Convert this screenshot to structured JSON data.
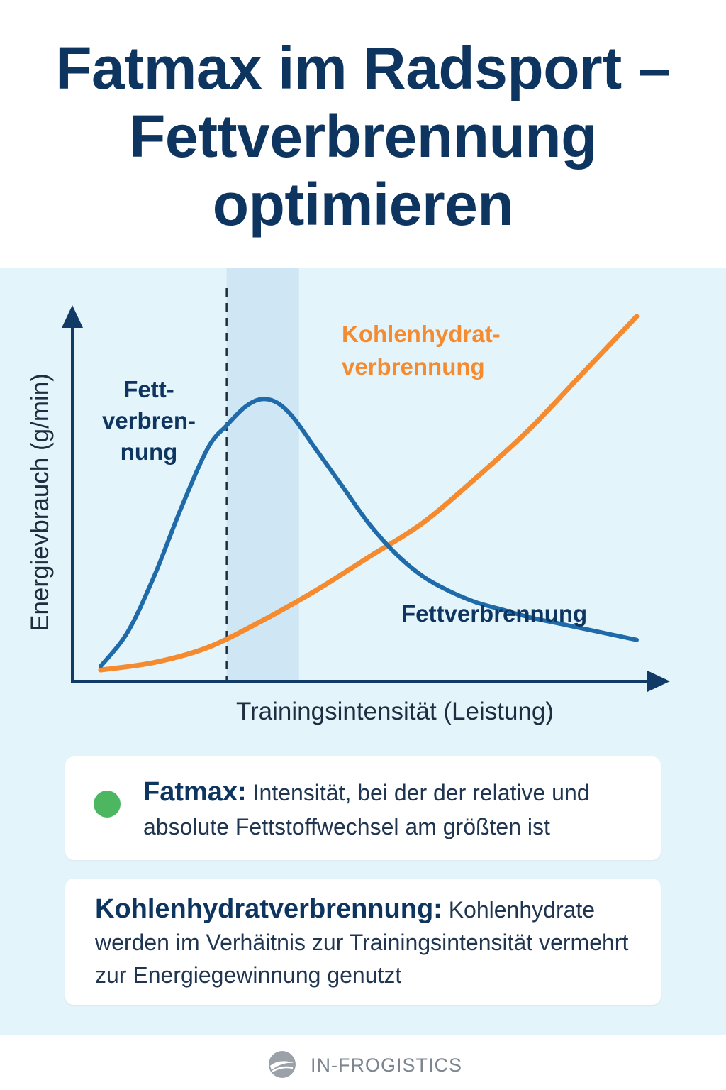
{
  "header": {
    "title_line1": "Fatmax im Radsport –",
    "title_line2": "Fettverbrennung",
    "title_line3": "optimieren"
  },
  "colors": {
    "fat": "#1f6aa8",
    "carb": "#f58a2e",
    "navy": "#0e3560",
    "fatmax_dot": "#4cb660",
    "panel_bg": "#e4f4fb"
  },
  "chart_data": {
    "type": "line",
    "title": "",
    "xlabel": "Trainingsintensität (Leistung)",
    "ylabel": "Energievbrauch (g/min)",
    "xlim": [
      0,
      100
    ],
    "ylim": [
      0,
      100
    ],
    "ticks_shown": false,
    "grid": false,
    "fatmax_marker_x": 23.5,
    "fatmax_zone": [
      23.5,
      37
    ],
    "series": [
      {
        "name": "Fettverbrennung",
        "color": "#1f6aa8",
        "label_top": [
          "Fett-",
          "verbren-",
          "nung"
        ],
        "label_bottom": "Fettverbrennung",
        "x": [
          0,
          5,
          10,
          15,
          20,
          23.5,
          27,
          30,
          33,
          36,
          40,
          45,
          50,
          55,
          60,
          65,
          70,
          75,
          80,
          85,
          90,
          95,
          100
        ],
        "y": [
          4,
          13,
          28,
          46,
          62,
          68,
          73,
          75,
          74,
          70,
          62,
          52,
          42,
          34,
          28,
          24,
          21,
          19,
          17,
          15.5,
          14,
          12.5,
          11
        ]
      },
      {
        "name": "Kohlenhydratverbrennung",
        "color": "#f58a2e",
        "label": [
          "Kohlenhydrat-",
          "verbrennung"
        ],
        "x": [
          0,
          10,
          20,
          30,
          40,
          50,
          60,
          70,
          80,
          90,
          100
        ],
        "y": [
          3,
          5,
          9,
          16,
          24,
          33,
          42,
          54,
          67,
          82,
          97
        ]
      }
    ]
  },
  "legend": {
    "fatmax_term": "Fatmax:",
    "fatmax_text": "Intensität, bei der der relative und absolute Fettstoffwechsel am größten ist",
    "carb_term": "Kohlenhydratverbrennung:",
    "carb_text": "Kohlenhydrate werden im Verhäitnis zur Trainingsintensität vermehrt zur Energiegewinnung genutzt"
  },
  "footer": {
    "brand": "IN-FROGISTICS",
    "logo_icon": "frog-swoosh-logo-icon"
  }
}
